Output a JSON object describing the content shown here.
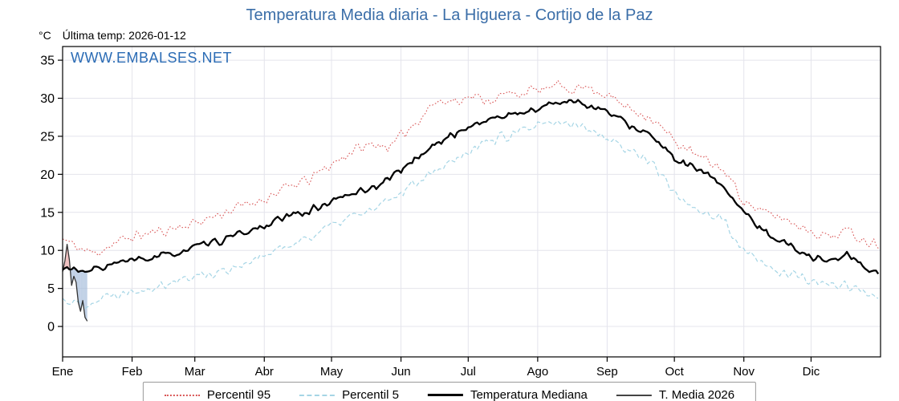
{
  "title": "Temperatura Media diaria - La Higuera - Cortijo de la Paz",
  "unit_label": "°C",
  "last_temp_label": "Última temp: 2026-01-12",
  "watermark": "WWW.EMBALSES.NET",
  "colors": {
    "title": "#3b6ea8",
    "watermark": "#2b6cb5",
    "p95": "#d95757",
    "p5": "#a5d5e5",
    "median": "#000000",
    "t2026": "#333333",
    "fill_above": "#e8a0a0",
    "fill_below": "#9fb8d8",
    "grid": "#e4e4ec",
    "axis": "#000000"
  },
  "chart_data": {
    "type": "line",
    "title": "Temperatura Media diaria - La Higuera - Cortijo de la Paz",
    "xlabel": "",
    "ylabel": "°C",
    "ylim": [
      -4,
      36.8
    ],
    "yticks": [
      0,
      5,
      10,
      15,
      20,
      25,
      30,
      35
    ],
    "months": [
      "Ene",
      "Feb",
      "Mar",
      "Abr",
      "May",
      "Jun",
      "Jul",
      "Ago",
      "Sep",
      "Oct",
      "Nov",
      "Dic"
    ],
    "month_start_days": [
      0,
      31,
      59,
      90,
      120,
      151,
      181,
      212,
      243,
      273,
      304,
      334
    ],
    "days_in_year": 365,
    "grid": true,
    "legend_position": "bottom",
    "legend": [
      "Percentil 95",
      "Percentil 5",
      "Temperatura Mediana",
      "T. Media 2026"
    ],
    "series": [
      {
        "name": "Percentil 95",
        "style": "dotted",
        "noise": 0.7,
        "seed": 11,
        "anchors": [
          [
            0,
            11.5
          ],
          [
            8,
            10.2
          ],
          [
            14,
            9.6
          ],
          [
            22,
            10.8
          ],
          [
            31,
            11.8
          ],
          [
            45,
            12.6
          ],
          [
            59,
            13.6
          ],
          [
            75,
            15.3
          ],
          [
            90,
            16.8
          ],
          [
            100,
            18.2
          ],
          [
            110,
            19.3
          ],
          [
            120,
            21.3
          ],
          [
            130,
            23.2
          ],
          [
            140,
            24.0
          ],
          [
            147,
            23.6
          ],
          [
            151,
            25.0
          ],
          [
            158,
            27.0
          ],
          [
            165,
            29.3
          ],
          [
            172,
            29.6
          ],
          [
            181,
            30.2
          ],
          [
            190,
            29.8
          ],
          [
            200,
            30.6
          ],
          [
            212,
            31.0
          ],
          [
            222,
            31.6
          ],
          [
            228,
            31.3
          ],
          [
            235,
            31.5
          ],
          [
            243,
            30.4
          ],
          [
            252,
            28.8
          ],
          [
            262,
            27.6
          ],
          [
            273,
            24.4
          ],
          [
            283,
            22.4
          ],
          [
            295,
            20.6
          ],
          [
            304,
            16.6
          ],
          [
            312,
            15.0
          ],
          [
            320,
            14.4
          ],
          [
            334,
            12.6
          ],
          [
            342,
            11.8
          ],
          [
            350,
            12.6
          ],
          [
            358,
            11.4
          ],
          [
            364,
            10.8
          ]
        ]
      },
      {
        "name": "Percentil 5",
        "style": "dashed",
        "noise": 0.65,
        "seed": 22,
        "anchors": [
          [
            0,
            3.6
          ],
          [
            8,
            3.0
          ],
          [
            15,
            3.4
          ],
          [
            22,
            4.2
          ],
          [
            31,
            4.8
          ],
          [
            45,
            5.6
          ],
          [
            59,
            6.6
          ],
          [
            70,
            7.2
          ],
          [
            80,
            8.2
          ],
          [
            90,
            9.2
          ],
          [
            100,
            10.6
          ],
          [
            110,
            11.8
          ],
          [
            120,
            13.2
          ],
          [
            130,
            14.6
          ],
          [
            140,
            15.4
          ],
          [
            151,
            17.6
          ],
          [
            160,
            19.6
          ],
          [
            170,
            21.2
          ],
          [
            181,
            23.2
          ],
          [
            190,
            24.4
          ],
          [
            200,
            25.2
          ],
          [
            212,
            26.2
          ],
          [
            220,
            26.8
          ],
          [
            228,
            26.4
          ],
          [
            235,
            26.2
          ],
          [
            243,
            24.8
          ],
          [
            252,
            23.2
          ],
          [
            262,
            22.0
          ],
          [
            273,
            17.4
          ],
          [
            283,
            15.6
          ],
          [
            295,
            13.8
          ],
          [
            304,
            9.8
          ],
          [
            312,
            8.2
          ],
          [
            320,
            7.2
          ],
          [
            334,
            6.0
          ],
          [
            342,
            5.2
          ],
          [
            350,
            5.6
          ],
          [
            358,
            4.4
          ],
          [
            364,
            4.0
          ]
        ]
      },
      {
        "name": "Temperatura Mediana",
        "style": "solid",
        "noise": 0.45,
        "seed": 33,
        "anchors": [
          [
            0,
            7.4
          ],
          [
            4,
            7.8
          ],
          [
            9,
            6.9
          ],
          [
            15,
            7.6
          ],
          [
            22,
            8.2
          ],
          [
            31,
            8.6
          ],
          [
            40,
            9.0
          ],
          [
            50,
            9.6
          ],
          [
            59,
            10.4
          ],
          [
            70,
            11.2
          ],
          [
            80,
            12.2
          ],
          [
            90,
            13.2
          ],
          [
            100,
            14.4
          ],
          [
            110,
            15.2
          ],
          [
            120,
            16.4
          ],
          [
            130,
            17.6
          ],
          [
            140,
            18.4
          ],
          [
            151,
            20.6
          ],
          [
            160,
            22.6
          ],
          [
            170,
            24.6
          ],
          [
            181,
            26.2
          ],
          [
            190,
            27.2
          ],
          [
            200,
            27.8
          ],
          [
            212,
            28.6
          ],
          [
            220,
            29.4
          ],
          [
            228,
            29.8
          ],
          [
            235,
            29.0
          ],
          [
            243,
            28.2
          ],
          [
            252,
            26.6
          ],
          [
            262,
            25.2
          ],
          [
            273,
            22.0
          ],
          [
            283,
            20.6
          ],
          [
            295,
            18.6
          ],
          [
            304,
            14.8
          ],
          [
            312,
            12.8
          ],
          [
            320,
            11.4
          ],
          [
            327,
            10.2
          ],
          [
            334,
            9.2
          ],
          [
            342,
            8.6
          ],
          [
            350,
            9.4
          ],
          [
            356,
            8.2
          ],
          [
            364,
            7.0
          ]
        ]
      },
      {
        "name": "T. Media 2026",
        "style": "solid-thin",
        "daily": [
          7.2,
          8.6,
          10.8,
          8.8,
          5.4,
          6.6,
          5.8,
          3.2,
          2.0,
          3.4,
          1.2,
          0.7
        ]
      }
    ]
  }
}
